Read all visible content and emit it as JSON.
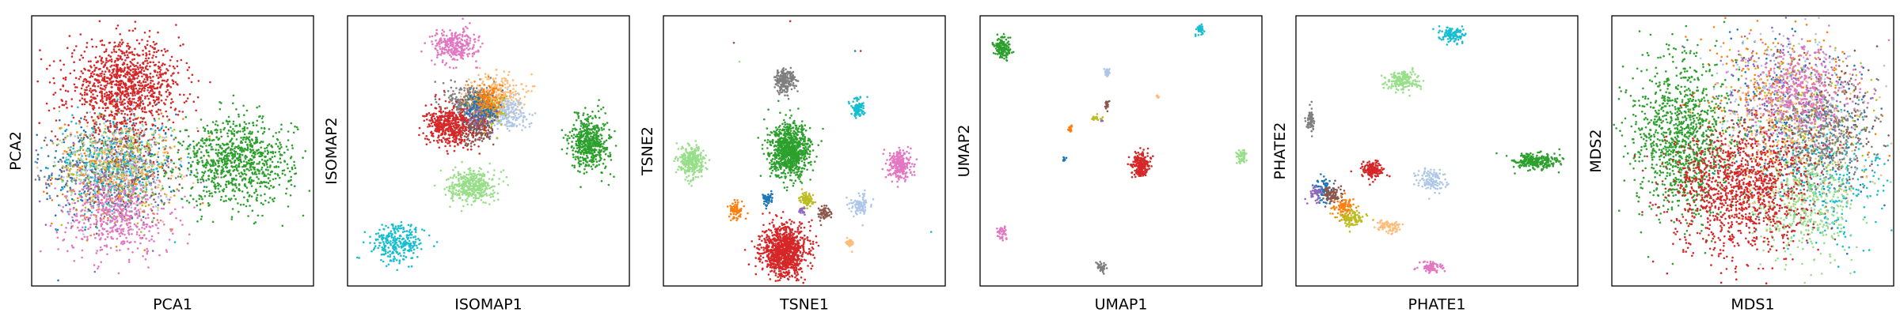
{
  "colors": {
    "c0": "#1f77b4",
    "c1": "#ff7f0e",
    "c2": "#2ca02c",
    "c3": "#d62728",
    "c4": "#9467bd",
    "c5": "#8c564b",
    "c6": "#e377c2",
    "c7": "#7f7f7f",
    "c8": "#bcbd22",
    "c9": "#17becf",
    "c10": "#aec7e8",
    "c11": "#ffbb78",
    "c12": "#98df8a"
  },
  "chart_data": [
    {
      "type": "scatter",
      "xlabel": "PCA1",
      "ylabel": "PCA2",
      "xticks": [],
      "yticks": [],
      "xlim": [
        0,
        100
      ],
      "ylim": [
        0,
        100
      ],
      "clusters": [
        {
          "color": "c0",
          "cx": 28,
          "cy": 44,
          "sx": 12,
          "sy": 10,
          "n": 380
        },
        {
          "color": "c1",
          "cx": 30,
          "cy": 42,
          "sx": 11,
          "sy": 10,
          "n": 200
        },
        {
          "color": "c4",
          "cx": 28,
          "cy": 40,
          "sx": 11,
          "sy": 9,
          "n": 180
        },
        {
          "color": "c5",
          "cx": 30,
          "cy": 44,
          "sx": 10,
          "sy": 10,
          "n": 180
        },
        {
          "color": "c7",
          "cx": 29,
          "cy": 42,
          "sx": 10,
          "sy": 9,
          "n": 180
        },
        {
          "color": "c8",
          "cx": 31,
          "cy": 44,
          "sx": 10,
          "sy": 9,
          "n": 180
        },
        {
          "color": "c9",
          "cx": 28,
          "cy": 45,
          "sx": 11,
          "sy": 10,
          "n": 180
        },
        {
          "color": "c10",
          "cx": 30,
          "cy": 43,
          "sx": 10,
          "sy": 9,
          "n": 180
        },
        {
          "color": "c11",
          "cx": 32,
          "cy": 46,
          "sx": 10,
          "sy": 9,
          "n": 160
        },
        {
          "color": "c12",
          "cx": 30,
          "cy": 48,
          "sx": 10,
          "sy": 9,
          "n": 160
        },
        {
          "color": "c6",
          "cx": 30,
          "cy": 25,
          "sx": 10,
          "sy": 7,
          "n": 450
        },
        {
          "color": "c3",
          "cx": 33,
          "cy": 74,
          "sx": 10,
          "sy": 8,
          "n": 1100
        },
        {
          "color": "c2",
          "cx": 73,
          "cy": 46,
          "sx": 10,
          "sy": 8,
          "n": 900
        }
      ]
    },
    {
      "type": "scatter",
      "xlabel": "ISOMAP1",
      "ylabel": "ISOMAP2",
      "xticks": [],
      "yticks": [],
      "xlim": [
        0,
        100
      ],
      "ylim": [
        0,
        100
      ],
      "clusters": [
        {
          "color": "c6",
          "cx": 38,
          "cy": 89,
          "sx": 4,
          "sy": 3,
          "n": 280
        },
        {
          "color": "c7",
          "cx": 44,
          "cy": 68,
          "sx": 4,
          "sy": 3.5,
          "n": 300
        },
        {
          "color": "c11",
          "cx": 53,
          "cy": 71,
          "sx": 4.5,
          "sy": 4,
          "n": 240
        },
        {
          "color": "c10",
          "cx": 56,
          "cy": 64,
          "sx": 4,
          "sy": 3,
          "n": 220
        },
        {
          "color": "c8",
          "cx": 50,
          "cy": 65,
          "sx": 3,
          "sy": 3,
          "n": 140
        },
        {
          "color": "c4",
          "cx": 47,
          "cy": 62,
          "sx": 3,
          "sy": 3,
          "n": 120
        },
        {
          "color": "c5",
          "cx": 45,
          "cy": 58,
          "sx": 3.5,
          "sy": 3,
          "n": 180
        },
        {
          "color": "c0",
          "cx": 48,
          "cy": 66,
          "sx": 3,
          "sy": 3,
          "n": 120
        },
        {
          "color": "c1",
          "cx": 50,
          "cy": 69,
          "sx": 3,
          "sy": 3,
          "n": 120
        },
        {
          "color": "c3",
          "cx": 36,
          "cy": 59,
          "sx": 4,
          "sy": 3.5,
          "n": 450
        },
        {
          "color": "c12",
          "cx": 44,
          "cy": 37,
          "sx": 4,
          "sy": 3,
          "n": 400
        },
        {
          "color": "c2",
          "cx": 86,
          "cy": 53,
          "sx": 3.5,
          "sy": 5,
          "n": 500
        },
        {
          "color": "c9",
          "cx": 18,
          "cy": 16,
          "sx": 4.5,
          "sy": 3.5,
          "n": 280
        }
      ]
    },
    {
      "type": "scatter",
      "xlabel": "TSNE1",
      "ylabel": "TSNE2",
      "xticks": [],
      "yticks": [],
      "xlim": [
        0,
        100
      ],
      "ylim": [
        0,
        100
      ],
      "clusters": [
        {
          "color": "c7",
          "cx": 43,
          "cy": 76,
          "sx": 1.8,
          "sy": 2.3,
          "n": 220
        },
        {
          "color": "c9",
          "cx": 69,
          "cy": 66,
          "sx": 1.2,
          "sy": 1.6,
          "n": 100
        },
        {
          "color": "c2",
          "cx": 45,
          "cy": 50,
          "sx": 3.6,
          "sy": 4.8,
          "n": 900
        },
        {
          "color": "c12",
          "cx": 10,
          "cy": 46,
          "sx": 2.2,
          "sy": 2.9,
          "n": 300
        },
        {
          "color": "c6",
          "cx": 84,
          "cy": 45,
          "sx": 2.0,
          "sy": 2.7,
          "n": 250
        },
        {
          "color": "c0",
          "cx": 37,
          "cy": 32,
          "sx": 0.9,
          "sy": 1.2,
          "n": 60
        },
        {
          "color": "c1",
          "cx": 26,
          "cy": 28,
          "sx": 1.3,
          "sy": 1.6,
          "n": 80
        },
        {
          "color": "c8",
          "cx": 51,
          "cy": 32,
          "sx": 1.2,
          "sy": 1.3,
          "n": 80
        },
        {
          "color": "c4",
          "cx": 49,
          "cy": 28,
          "sx": 0.6,
          "sy": 0.8,
          "n": 25
        },
        {
          "color": "c5",
          "cx": 57,
          "cy": 27,
          "sx": 1.0,
          "sy": 1.2,
          "n": 60
        },
        {
          "color": "c10",
          "cx": 70,
          "cy": 30,
          "sx": 1.6,
          "sy": 1.9,
          "n": 100
        },
        {
          "color": "c11",
          "cx": 66,
          "cy": 16,
          "sx": 0.7,
          "sy": 0.9,
          "n": 25
        },
        {
          "color": "c3",
          "cx": 43,
          "cy": 13,
          "sx": 4.0,
          "sy": 4.8,
          "n": 1000
        }
      ],
      "outliers": [
        {
          "color": "c3",
          "x": 45,
          "y": 98
        },
        {
          "color": "c5",
          "x": 25,
          "y": 90
        },
        {
          "color": "c12",
          "x": 27,
          "y": 83
        },
        {
          "color": "c3",
          "x": 70,
          "y": 87
        },
        {
          "color": "c9",
          "x": 95,
          "y": 20
        },
        {
          "color": "c0",
          "x": 68,
          "y": 87
        }
      ]
    },
    {
      "type": "scatter",
      "xlabel": "UMAP1",
      "ylabel": "UMAP2",
      "xticks": [],
      "yticks": [],
      "xlim": [
        0,
        100
      ],
      "ylim": [
        0,
        100
      ],
      "clusters": [
        {
          "color": "c2",
          "cx": 8,
          "cy": 88,
          "sx": 1.5,
          "sy": 1.9,
          "n": 160
        },
        {
          "color": "c9",
          "cx": 78,
          "cy": 95,
          "sx": 0.6,
          "sy": 0.9,
          "n": 40
        },
        {
          "color": "c10",
          "cx": 45,
          "cy": 79,
          "sx": 0.5,
          "sy": 0.8,
          "n": 30
        },
        {
          "color": "c11",
          "cx": 63,
          "cy": 70,
          "sx": 0.3,
          "sy": 0.4,
          "n": 8
        },
        {
          "color": "c5",
          "cx": 45,
          "cy": 67,
          "sx": 0.4,
          "sy": 0.8,
          "n": 20
        },
        {
          "color": "c8",
          "cx": 41,
          "cy": 62,
          "sx": 0.9,
          "sy": 0.6,
          "n": 20
        },
        {
          "color": "c1",
          "cx": 32,
          "cy": 58,
          "sx": 0.5,
          "sy": 0.6,
          "n": 15
        },
        {
          "color": "c4",
          "cx": 43,
          "cy": 61,
          "sx": 0.2,
          "sy": 0.3,
          "n": 5
        },
        {
          "color": "c0",
          "cx": 30,
          "cy": 47,
          "sx": 0.3,
          "sy": 0.5,
          "n": 10
        },
        {
          "color": "c3",
          "cx": 57,
          "cy": 45,
          "sx": 1.6,
          "sy": 2.2,
          "n": 220
        },
        {
          "color": "c12",
          "cx": 93,
          "cy": 48,
          "sx": 0.9,
          "sy": 1.3,
          "n": 50
        },
        {
          "color": "c6",
          "cx": 8,
          "cy": 20,
          "sx": 0.8,
          "sy": 1.2,
          "n": 40
        },
        {
          "color": "c7",
          "cx": 43,
          "cy": 7,
          "sx": 0.9,
          "sy": 1.0,
          "n": 40
        }
      ]
    },
    {
      "type": "scatter",
      "xlabel": "PHATE1",
      "ylabel": "PHATE2",
      "xticks": [],
      "yticks": [],
      "xlim": [
        0,
        100
      ],
      "ylim": [
        0,
        100
      ],
      "clusters": [
        {
          "color": "c9",
          "cx": 56,
          "cy": 93,
          "sx": 2.0,
          "sy": 1.5,
          "n": 120
        },
        {
          "color": "c12",
          "cx": 38,
          "cy": 76,
          "sx": 3.0,
          "sy": 1.8,
          "n": 180
        },
        {
          "color": "c7",
          "cx": 5,
          "cy": 61,
          "sx": 0.8,
          "sy": 2.2,
          "n": 70
        },
        {
          "color": "c2",
          "cx": 85,
          "cy": 46,
          "sx": 4.0,
          "sy": 1.5,
          "n": 260
        },
        {
          "color": "c3",
          "cx": 27,
          "cy": 43,
          "sx": 2.0,
          "sy": 1.6,
          "n": 160
        },
        {
          "color": "c10",
          "cx": 48,
          "cy": 39,
          "sx": 2.5,
          "sy": 2.2,
          "n": 120
        },
        {
          "color": "c0",
          "cx": 10,
          "cy": 35,
          "sx": 1.6,
          "sy": 2.2,
          "n": 90
        },
        {
          "color": "c5",
          "cx": 13,
          "cy": 34,
          "sx": 1.8,
          "sy": 1.8,
          "n": 90
        },
        {
          "color": "c4",
          "cx": 7,
          "cy": 34,
          "sx": 1.5,
          "sy": 1.5,
          "n": 40
        },
        {
          "color": "c1",
          "cx": 17,
          "cy": 29,
          "sx": 1.8,
          "sy": 1.8,
          "n": 90
        },
        {
          "color": "c8",
          "cx": 20,
          "cy": 25,
          "sx": 2.2,
          "sy": 1.8,
          "n": 110
        },
        {
          "color": "c11",
          "cx": 33,
          "cy": 22,
          "sx": 2.2,
          "sy": 1.2,
          "n": 80
        },
        {
          "color": "c6",
          "cx": 48,
          "cy": 7,
          "sx": 2.0,
          "sy": 1.0,
          "n": 90
        }
      ]
    },
    {
      "type": "scatter",
      "xlabel": "MDS1",
      "ylabel": "MDS2",
      "xticks": [],
      "yticks": [],
      "xlim": [
        0,
        100
      ],
      "ylim": [
        0,
        100
      ],
      "clusters": [
        {
          "color": "c0",
          "cx": 65,
          "cy": 60,
          "sx": 14,
          "sy": 16,
          "n": 260
        },
        {
          "color": "c1",
          "cx": 60,
          "cy": 68,
          "sx": 14,
          "sy": 14,
          "n": 260
        },
        {
          "color": "c4",
          "cx": 62,
          "cy": 72,
          "sx": 13,
          "sy": 12,
          "n": 200
        },
        {
          "color": "c5",
          "cx": 70,
          "cy": 58,
          "sx": 13,
          "sy": 14,
          "n": 200
        },
        {
          "color": "c8",
          "cx": 66,
          "cy": 62,
          "sx": 13,
          "sy": 14,
          "n": 200
        },
        {
          "color": "c9",
          "cx": 78,
          "cy": 40,
          "sx": 10,
          "sy": 13,
          "n": 260
        },
        {
          "color": "c10",
          "cx": 64,
          "cy": 70,
          "sx": 13,
          "sy": 13,
          "n": 240
        },
        {
          "color": "c11",
          "cx": 62,
          "cy": 55,
          "sx": 14,
          "sy": 14,
          "n": 240
        },
        {
          "color": "c7",
          "cx": 78,
          "cy": 56,
          "sx": 8,
          "sy": 10,
          "n": 380
        },
        {
          "color": "c6",
          "cx": 68,
          "cy": 72,
          "sx": 9,
          "sy": 8,
          "n": 380
        },
        {
          "color": "c12",
          "cx": 68,
          "cy": 30,
          "sx": 9,
          "sy": 10,
          "n": 420
        },
        {
          "color": "c2",
          "cx": 24,
          "cy": 55,
          "sx": 9,
          "sy": 15,
          "n": 1100
        },
        {
          "color": "c3",
          "cx": 45,
          "cy": 35,
          "sx": 12,
          "sy": 12,
          "n": 1200
        }
      ]
    }
  ]
}
